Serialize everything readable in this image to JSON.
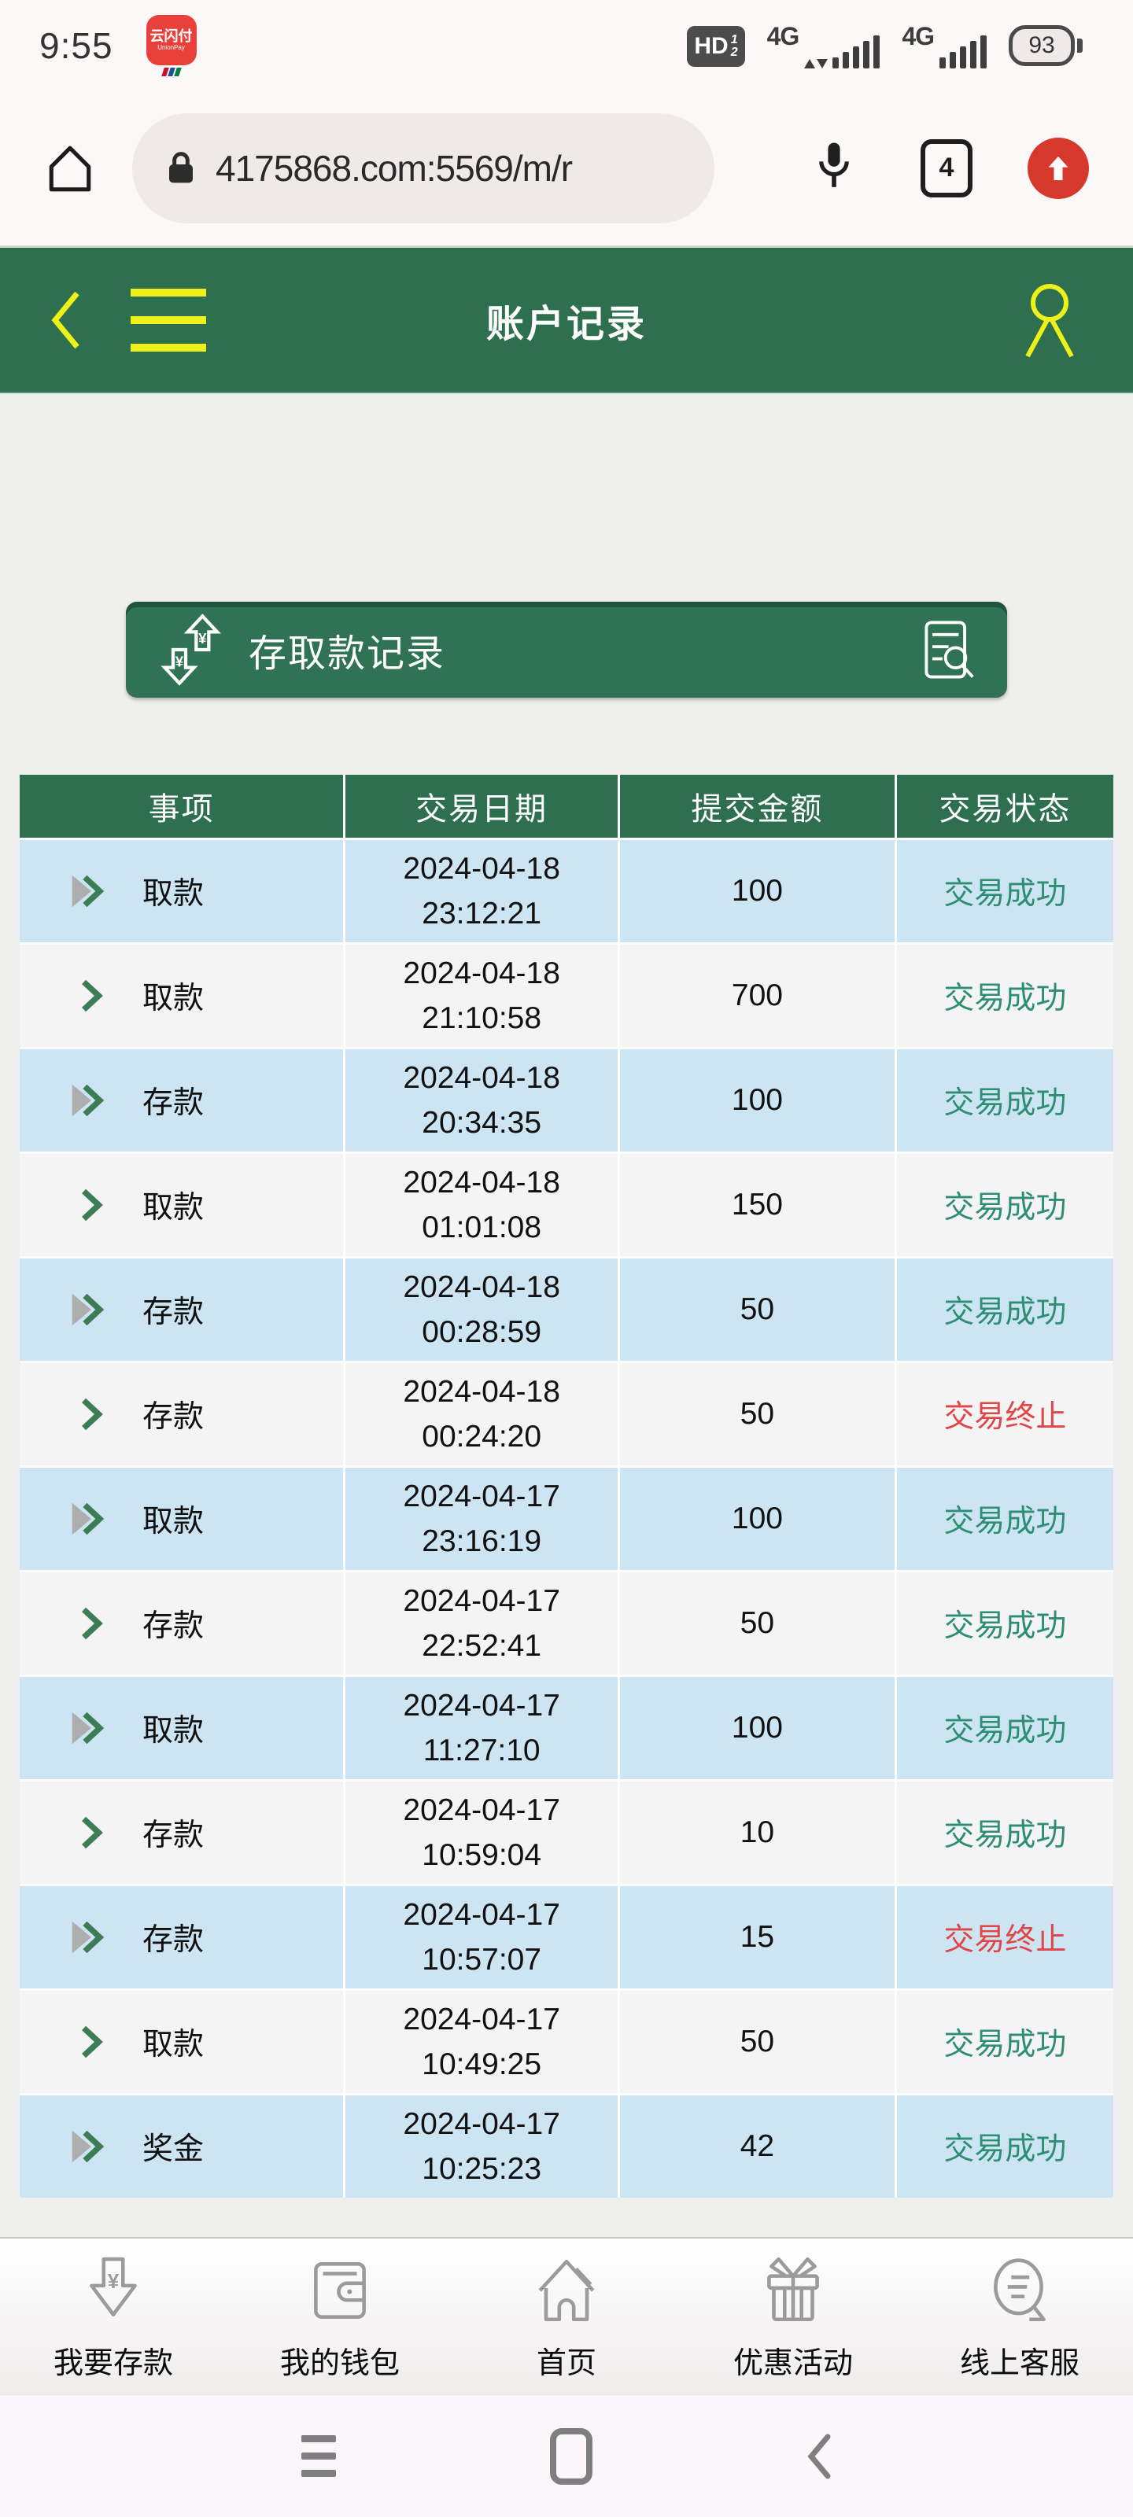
{
  "status_bar": {
    "time": "9:55",
    "unionpay_label": "云闪付",
    "unionpay_sub": "UnionPay",
    "hd_label": "HD",
    "hd_sim1": "1",
    "hd_sim2": "2",
    "network1": "4G",
    "network2": "4G",
    "battery": "93"
  },
  "browser": {
    "url": "4175868.com:5569/m/r",
    "tab_count": "4"
  },
  "app_header": {
    "title": "账户记录"
  },
  "banner": {
    "title": "存取款记录"
  },
  "table": {
    "headers": [
      "事项",
      "交易日期",
      "提交金额",
      "交易状态"
    ],
    "rows": [
      {
        "type": "取款",
        "date": "2024-04-18",
        "time": "23:12:21",
        "amount": "100",
        "status": "交易成功",
        "status_kind": "success",
        "arrow": "double"
      },
      {
        "type": "取款",
        "date": "2024-04-18",
        "time": "21:10:58",
        "amount": "700",
        "status": "交易成功",
        "status_kind": "success",
        "arrow": "single"
      },
      {
        "type": "存款",
        "date": "2024-04-18",
        "time": "20:34:35",
        "amount": "100",
        "status": "交易成功",
        "status_kind": "success",
        "arrow": "double"
      },
      {
        "type": "取款",
        "date": "2024-04-18",
        "time": "01:01:08",
        "amount": "150",
        "status": "交易成功",
        "status_kind": "success",
        "arrow": "single"
      },
      {
        "type": "存款",
        "date": "2024-04-18",
        "time": "00:28:59",
        "amount": "50",
        "status": "交易成功",
        "status_kind": "success",
        "arrow": "double"
      },
      {
        "type": "存款",
        "date": "2024-04-18",
        "time": "00:24:20",
        "amount": "50",
        "status": "交易终止",
        "status_kind": "terminated",
        "arrow": "single"
      },
      {
        "type": "取款",
        "date": "2024-04-17",
        "time": "23:16:19",
        "amount": "100",
        "status": "交易成功",
        "status_kind": "success",
        "arrow": "double"
      },
      {
        "type": "存款",
        "date": "2024-04-17",
        "time": "22:52:41",
        "amount": "50",
        "status": "交易成功",
        "status_kind": "success",
        "arrow": "single"
      },
      {
        "type": "取款",
        "date": "2024-04-17",
        "time": "11:27:10",
        "amount": "100",
        "status": "交易成功",
        "status_kind": "success",
        "arrow": "double"
      },
      {
        "type": "存款",
        "date": "2024-04-17",
        "time": "10:59:04",
        "amount": "10",
        "status": "交易成功",
        "status_kind": "success",
        "arrow": "single"
      },
      {
        "type": "存款",
        "date": "2024-04-17",
        "time": "10:57:07",
        "amount": "15",
        "status": "交易终止",
        "status_kind": "terminated",
        "arrow": "double"
      },
      {
        "type": "取款",
        "date": "2024-04-17",
        "time": "10:49:25",
        "amount": "50",
        "status": "交易成功",
        "status_kind": "success",
        "arrow": "single"
      },
      {
        "type": "奖金",
        "date": "2024-04-17",
        "time": "10:25:23",
        "amount": "42",
        "status": "交易成功",
        "status_kind": "success",
        "arrow": "double"
      }
    ]
  },
  "bottom_nav": {
    "items": [
      {
        "label": "我要存款",
        "icon": "deposit-arrow-icon"
      },
      {
        "label": "我的钱包",
        "icon": "wallet-icon"
      },
      {
        "label": "首页",
        "icon": "home-icon"
      },
      {
        "label": "优惠活动",
        "icon": "gift-icon"
      },
      {
        "label": "线上客服",
        "icon": "customer-service-icon"
      }
    ]
  },
  "android_nav": {
    "buttons": [
      "recents",
      "home",
      "back"
    ]
  },
  "colors": {
    "header_green": "#2e6f4f",
    "banner_green": "#2f7354",
    "row_blue": "#cde5f2",
    "row_gray": "#f4f4f4",
    "success_green": "#2e8e74",
    "terminated_red": "#e04646",
    "accent_yellow": "#eef019",
    "update_red": "#d7382c"
  }
}
